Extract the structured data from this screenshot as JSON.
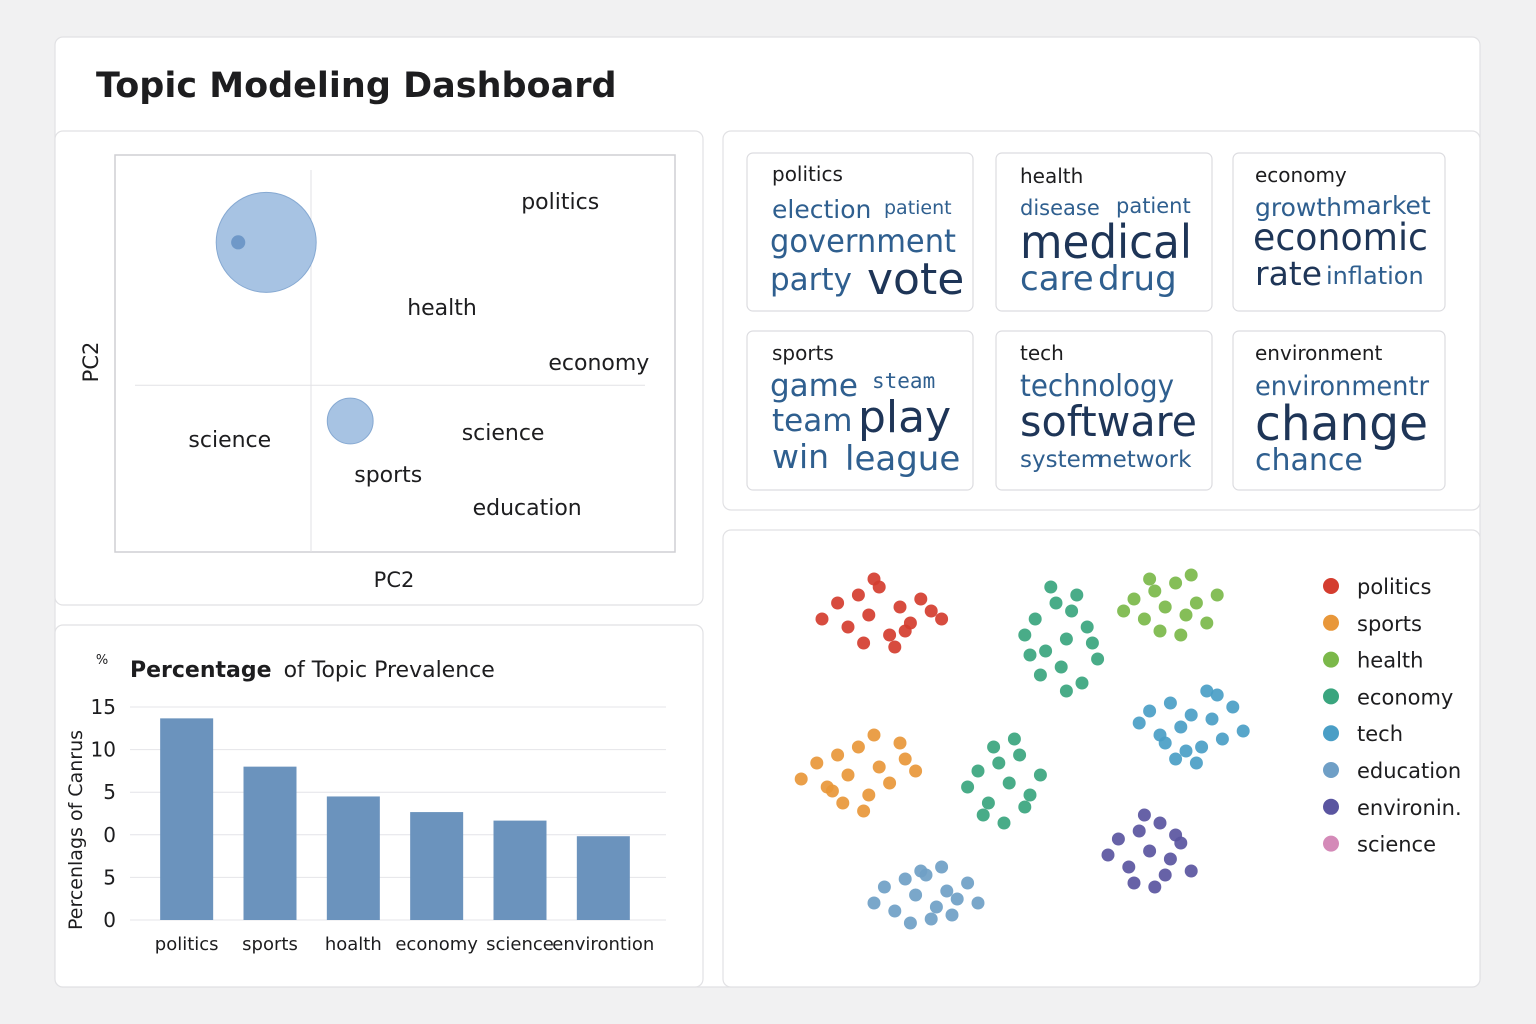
{
  "header": {
    "title": "Topic Modeling Dashboard"
  },
  "chart_data": [
    {
      "type": "bubble",
      "xlabel": "PC2",
      "ylabel": "PC2",
      "xlim": [
        0,
        100
      ],
      "ylim": [
        0,
        100
      ],
      "reference_lines": {
        "x": 35,
        "y": 42
      },
      "labels": {
        "text": [
          "politics",
          "health",
          "economy",
          "science",
          "science",
          "sports",
          "education"
        ],
        "x": [
          79.5,
          58.4,
          86.4,
          20.5,
          69.3,
          48.8,
          73.6
        ],
        "y": [
          88.4,
          61.7,
          47.9,
          28.5,
          30.2,
          19.6,
          11.3
        ]
      },
      "bubbles": {
        "x": [
          27,
          22,
          42
        ],
        "y": [
          78,
          78,
          33
        ],
        "size": [
          100,
          2,
          21
        ]
      }
    },
    {
      "type": "bar",
      "title": "Percentage",
      "subtitle": "of Topic Prevalence",
      "y_unit": "%",
      "ylabel": "Percenlags of Canrus",
      "categories": [
        "politics",
        "sports",
        "hoalth",
        "economy",
        "science",
        "environtion"
      ],
      "values": [
        14.2,
        10.8,
        8.7,
        7.6,
        7.0,
        5.9
      ],
      "color": "#6b93bd",
      "ylim": [
        0,
        15
      ],
      "yticks": [
        15,
        {
          "value": 12,
          "label": "10"
        },
        {
          "value": 9,
          "label": "5"
        },
        {
          "value": 6,
          "label": "0"
        },
        {
          "value": 3,
          "label": "5"
        },
        0
      ],
      "grid": true
    },
    {
      "type": "scatter",
      "xlim": [
        0,
        100
      ],
      "ylim": [
        0,
        100
      ],
      "legend": "right",
      "series": [
        {
          "name": "politics",
          "color": "#d43d2f",
          "x": [
            10,
            13,
            15,
            17,
            19,
            21,
            23,
            25,
            27,
            29,
            31,
            33,
            18,
            24,
            20,
            26
          ],
          "y": [
            84,
            88,
            82,
            90,
            85,
            92,
            80,
            87,
            83,
            89,
            86,
            84,
            78,
            77,
            94,
            81
          ]
        },
        {
          "name": "sports",
          "color": "#e8973a",
          "x": [
            6,
            9,
            11,
            13,
            15,
            17,
            19,
            21,
            23,
            26,
            28,
            14,
            20,
            12,
            25,
            18
          ],
          "y": [
            44,
            48,
            42,
            50,
            45,
            52,
            40,
            47,
            43,
            49,
            46,
            38,
            55,
            41,
            53,
            36
          ]
        },
        {
          "name": "health",
          "color": "#7bb84a",
          "x": [
            68,
            70,
            72,
            74,
            76,
            78,
            80,
            82,
            84,
            86,
            75,
            79,
            73,
            81
          ],
          "y": [
            86,
            89,
            84,
            91,
            87,
            93,
            85,
            88,
            83,
            90,
            81,
            80,
            94,
            95
          ]
        },
        {
          "name": "economy",
          "color": "#3aa57e",
          "x": [
            49,
            51,
            53,
            55,
            57,
            59,
            61,
            63,
            52,
            56,
            60,
            54,
            58,
            62,
            50,
            57,
            38,
            40,
            42,
            44,
            46,
            48,
            50,
            52,
            41,
            45,
            49,
            43,
            47
          ],
          "y": [
            80,
            84,
            76,
            88,
            79,
            90,
            82,
            74,
            70,
            72,
            68,
            92,
            86,
            78,
            75,
            66,
            42,
            46,
            38,
            48,
            43,
            50,
            40,
            45,
            35,
            33,
            37,
            52,
            54
          ]
        },
        {
          "name": "tech",
          "color": "#4a9ec6",
          "x": [
            71,
            73,
            75,
            77,
            79,
            81,
            83,
            85,
            87,
            89,
            91,
            78,
            82,
            86,
            80,
            84,
            76
          ],
          "y": [
            58,
            61,
            55,
            63,
            57,
            60,
            52,
            59,
            54,
            62,
            56,
            49,
            48,
            65,
            51,
            66,
            53
          ]
        },
        {
          "name": "education",
          "color": "#6f9fc6",
          "x": [
            20,
            22,
            24,
            26,
            28,
            30,
            32,
            34,
            36,
            38,
            40,
            27,
            31,
            35,
            29,
            33
          ],
          "y": [
            13,
            17,
            11,
            19,
            15,
            20,
            12,
            16,
            14,
            18,
            13,
            8,
            9,
            10,
            21,
            22
          ]
        },
        {
          "name": "environin.",
          "color": "#5a55a0",
          "x": [
            65,
            67,
            69,
            71,
            73,
            75,
            77,
            79,
            81,
            70,
            74,
            78,
            72,
            76
          ],
          "y": [
            25,
            29,
            22,
            31,
            26,
            33,
            24,
            28,
            21,
            18,
            17,
            30,
            35,
            20
          ]
        },
        {
          "name": "science",
          "color": "#d48ab8",
          "x": [],
          "y": []
        }
      ]
    }
  ],
  "word_clouds": [
    {
      "title": "politics",
      "words": [
        "election",
        "patient",
        "government",
        "party",
        "vote"
      ]
    },
    {
      "title": "health",
      "words": [
        "disease",
        "patient",
        "medical",
        "care",
        "drug"
      ]
    },
    {
      "title": "economy",
      "words": [
        "growth",
        "market",
        "economic",
        "rate",
        "inflation"
      ]
    },
    {
      "title": "sports",
      "words": [
        "game",
        "steam",
        "team",
        "play",
        "win",
        "league"
      ]
    },
    {
      "title": "tech",
      "words": [
        "technology",
        "software",
        "system",
        "network"
      ]
    },
    {
      "title": "environment",
      "words": [
        "environmentr",
        "change",
        "chance"
      ]
    }
  ]
}
